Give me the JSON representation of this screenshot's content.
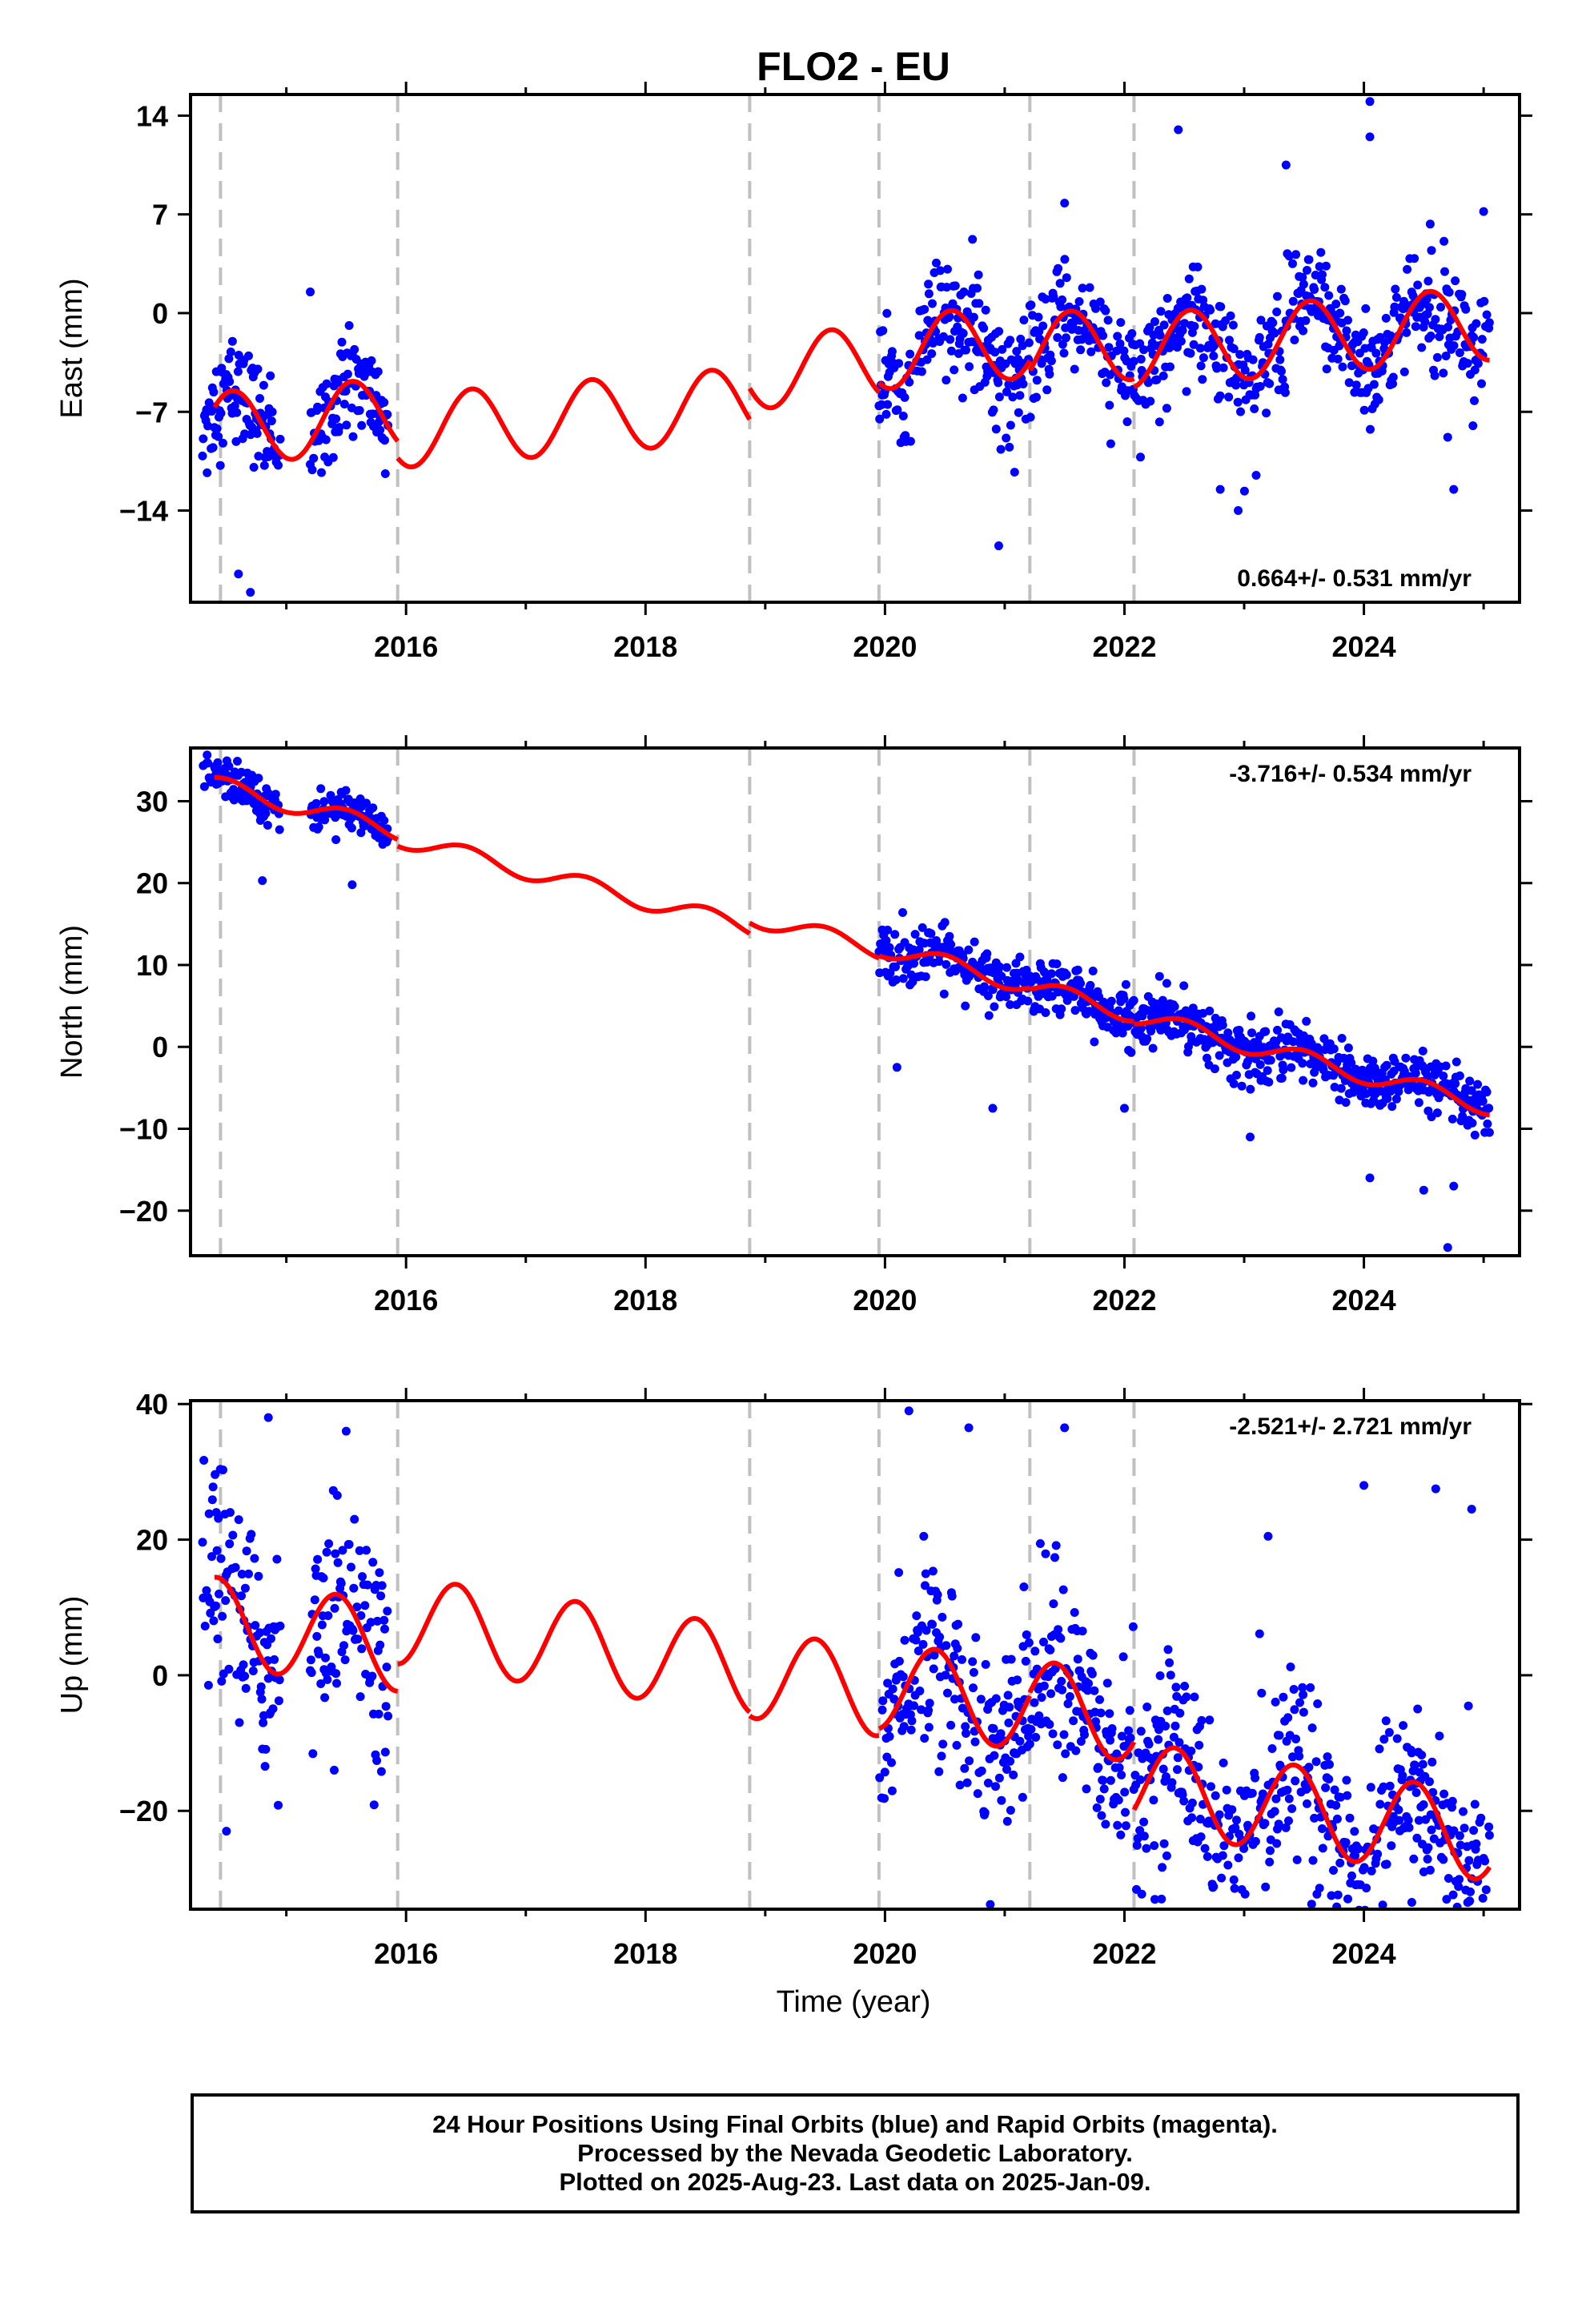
{
  "chart_data": {
    "title": "FLO2 - EU",
    "xlabel": "Time (year)",
    "type": "scatter",
    "xlim": [
      2014.2,
      2025.3
    ],
    "x_ticks": [
      2016,
      2018,
      2020,
      2022,
      2024
    ],
    "x_tick_labels": [
      "2016",
      "2018",
      "2020",
      "2022",
      "2024"
    ],
    "x_minor_ticks": [
      2015,
      2017,
      2019,
      2021,
      2023,
      2025
    ],
    "breaks": [
      2014.45,
      2015.93,
      2018.87,
      2019.95,
      2021.21,
      2022.08
    ],
    "series_colors": {
      "observations": "#0000ff",
      "model": "#ff0000",
      "breaks": "#c0c0c0"
    },
    "segments": [
      [
        2014.4,
        2015.93
      ],
      [
        2015.93,
        2018.87
      ],
      [
        2018.87,
        2019.95
      ],
      [
        2019.95,
        2021.21
      ],
      [
        2021.21,
        2022.08
      ],
      [
        2022.08,
        2025.05
      ]
    ],
    "panels": [
      {
        "name": "east",
        "ylabel": "East (mm)",
        "ylim": [
          -20.5,
          15.5
        ],
        "yticks": [
          -14,
          -7,
          0,
          7,
          14
        ],
        "ytick_labels": [
          "−14",
          "−7",
          "0",
          "7",
          "14"
        ],
        "rate_label": "0.664+/- 0.531 mm/yr",
        "rate_position": "bottom-right",
        "model": {
          "trend_mm_per_yr": 0.664,
          "anchor_year": 2014.4,
          "anchor_value": -8.2,
          "annual_amplitude": 2.6,
          "annual_phase_year": 2014.55,
          "offsets": [
            0,
            -1.2,
            1.0,
            1.7,
            1.0,
            0.4
          ]
        },
        "observation_windows": [
          {
            "start": 2014.3,
            "end": 2014.95,
            "center": -8.5,
            "spread": 1.8
          },
          {
            "start": 2015.2,
            "end": 2015.85,
            "center": -7.5,
            "spread": 1.7
          },
          {
            "start": 2019.95,
            "end": 2025.05,
            "center": 0.8,
            "spread": 2.0
          }
        ],
        "outliers": [
          [
            2014.6,
            -18.5
          ],
          [
            2014.7,
            -19.8
          ],
          [
            2014.55,
            -2.0
          ],
          [
            2015.2,
            1.5
          ],
          [
            2020.95,
            -16.5
          ],
          [
            2021.5,
            7.8
          ],
          [
            2022.45,
            13.0
          ],
          [
            2023.35,
            10.5
          ],
          [
            2024.05,
            15.0
          ],
          [
            2024.05,
            12.5
          ],
          [
            2022.95,
            -14.0
          ],
          [
            2023.1,
            -11.5
          ],
          [
            2022.8,
            -12.5
          ],
          [
            2024.75,
            -12.5
          ],
          [
            2024.7,
            -8.8
          ],
          [
            2025.0,
            7.2
          ]
        ]
      },
      {
        "name": "north",
        "ylabel": "North (mm)",
        "ylim": [
          -25.5,
          36.5
        ],
        "yticks": [
          -20,
          -10,
          0,
          10,
          20,
          30
        ],
        "ytick_labels": [
          "−20",
          "−10",
          "0",
          "10",
          "20",
          "30"
        ],
        "rate_label": "-3.716+/- 0.534 mm/yr",
        "rate_position": "top-right",
        "model": {
          "trend_mm_per_yr": -3.716,
          "anchor_year": 2014.4,
          "anchor_value": 32.0,
          "annual_amplitude": 1.1,
          "annual_phase_year": 2014.5,
          "offsets": [
            0,
            -0.8,
            0.5,
            0.8,
            0.6,
            0.3
          ]
        },
        "observation_windows": [
          {
            "start": 2014.3,
            "end": 2014.95,
            "center": 31.0,
            "spread": 1.2
          },
          {
            "start": 2015.2,
            "end": 2015.85,
            "center": 26.5,
            "spread": 1.2
          },
          {
            "start": 2019.95,
            "end": 2025.05,
            "center": -1.5,
            "spread": 1.6
          }
        ],
        "outliers": [
          [
            2014.8,
            20.3
          ],
          [
            2015.55,
            19.8
          ],
          [
            2020.1,
            -2.5
          ],
          [
            2020.9,
            -7.5
          ],
          [
            2022.0,
            -7.5
          ],
          [
            2024.05,
            -16.0
          ],
          [
            2024.5,
            -17.5
          ],
          [
            2024.75,
            -17.0
          ],
          [
            2024.7,
            -24.5
          ],
          [
            2023.05,
            -11.0
          ],
          [
            2020.55,
            12.5
          ]
        ]
      },
      {
        "name": "up",
        "ylabel": "Up (mm)",
        "ylim": [
          -34.5,
          40.5
        ],
        "yticks": [
          -20,
          0,
          20,
          40
        ],
        "ytick_labels": [
          "−20",
          "0",
          "20",
          "40"
        ],
        "rate_label": "-2.521+/- 2.721 mm/yr",
        "rate_position": "top-right",
        "model": {
          "trend_mm_per_yr": -2.521,
          "anchor_year": 2014.4,
          "anchor_value": 8.0,
          "annual_amplitude": 6.5,
          "annual_phase_year": 2014.42,
          "offsets": [
            0,
            4.0,
            3.5,
            4.5,
            5.0,
            -5.0
          ]
        },
        "observation_windows": [
          {
            "start": 2014.3,
            "end": 2014.95,
            "center": 12.0,
            "spread": 8.0
          },
          {
            "start": 2015.2,
            "end": 2015.85,
            "center": 8.0,
            "spread": 8.0
          },
          {
            "start": 2019.95,
            "end": 2025.05,
            "center": 2.0,
            "spread": 7.0
          }
        ],
        "outliers": [
          [
            2014.5,
            -23.0
          ],
          [
            2014.85,
            38.0
          ],
          [
            2015.4,
            -14.0
          ],
          [
            2015.5,
            36.0
          ],
          [
            2020.2,
            39.0
          ],
          [
            2020.7,
            36.5
          ],
          [
            2021.5,
            36.5
          ],
          [
            2024.0,
            28.0
          ],
          [
            2024.6,
            27.5
          ],
          [
            2024.5,
            -29.0
          ],
          [
            2024.4,
            -33.5
          ],
          [
            2025.0,
            -27.0
          ],
          [
            2023.2,
            20.5
          ],
          [
            2024.9,
            24.5
          ],
          [
            2021.15,
            -18.0
          ]
        ]
      }
    ]
  },
  "footer": {
    "line1": "24 Hour Positions Using Final Orbits (blue) and Rapid Orbits (magenta).",
    "line2": "Processed by the Nevada Geodetic Laboratory.",
    "line3": "Plotted on 2025-Aug-23. Last data on 2025-Jan-09."
  }
}
